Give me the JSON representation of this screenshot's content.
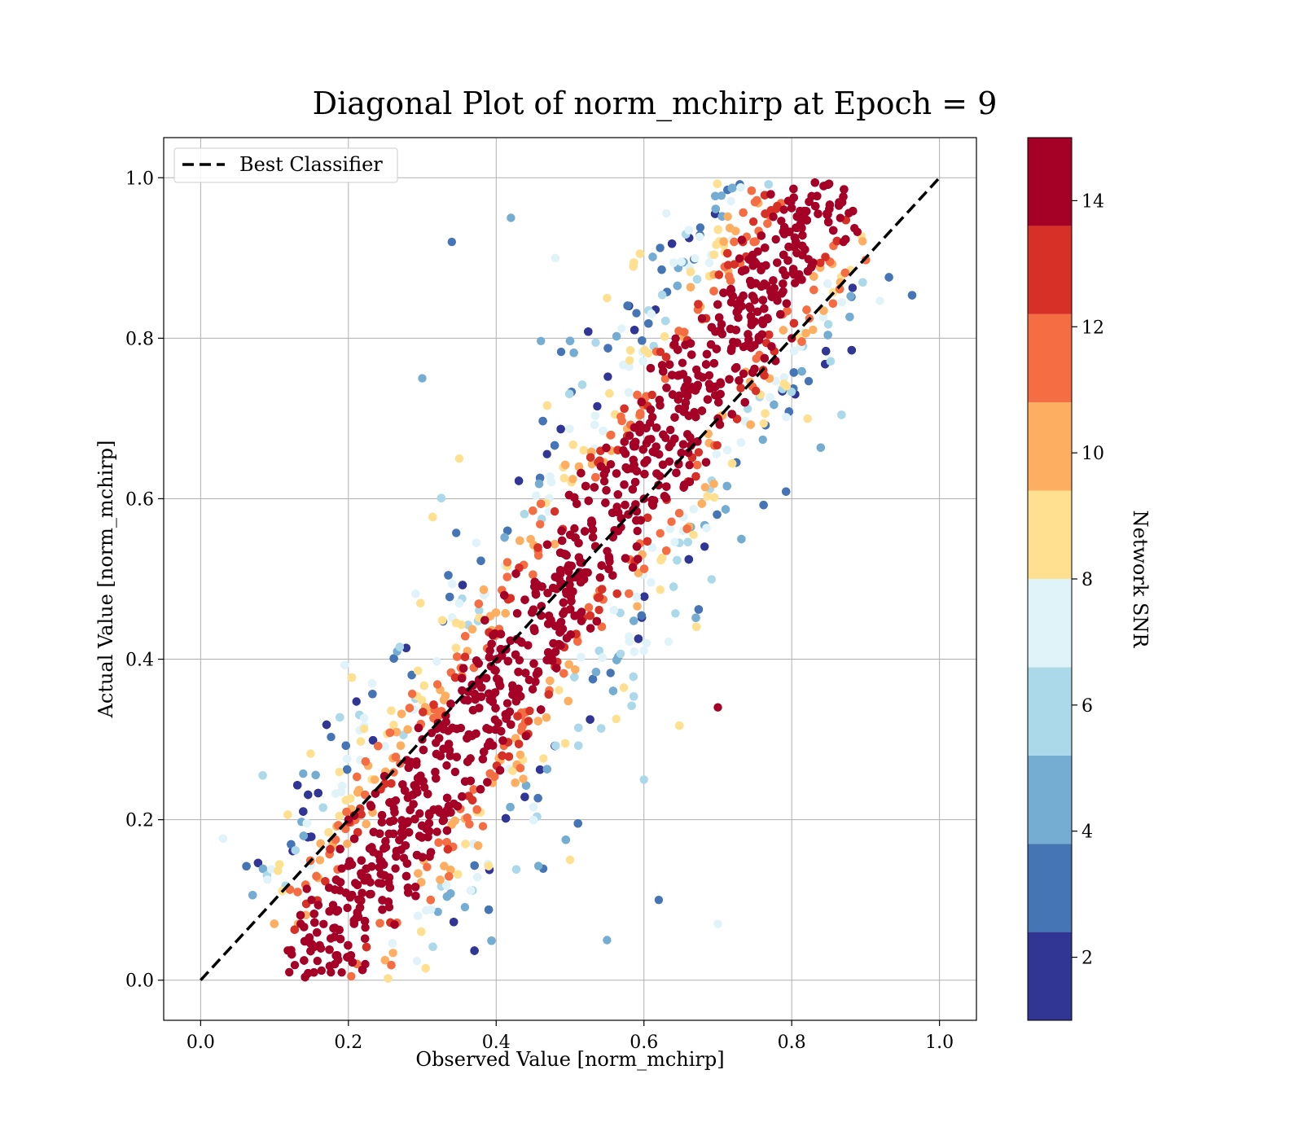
{
  "chart_data": {
    "type": "scatter",
    "title": "Diagonal Plot of norm_mchirp at Epoch = 9",
    "xlabel": "Observed Value [norm_mchirp]",
    "ylabel": "Actual Value [norm_mchirp]",
    "xlim": [
      -0.05,
      1.05
    ],
    "ylim": [
      -0.05,
      1.05
    ],
    "xticks": [
      0.0,
      0.2,
      0.4,
      0.6,
      0.8,
      1.0
    ],
    "yticks": [
      0.0,
      0.2,
      0.4,
      0.6,
      0.8,
      1.0
    ],
    "xtick_labels": [
      "0.0",
      "0.2",
      "0.4",
      "0.6",
      "0.8",
      "1.0"
    ],
    "ytick_labels": [
      "0.0",
      "0.2",
      "0.4",
      "0.6",
      "0.8",
      "1.0"
    ],
    "grid": true,
    "legend": {
      "placement": "upper-left",
      "entries": [
        "Best Classifier"
      ]
    },
    "reference_line": {
      "name": "Best Classifier",
      "x": [
        0.0,
        1.0
      ],
      "y": [
        0.0,
        1.0
      ],
      "style": "dashed",
      "color": "#000000"
    },
    "colorbar": {
      "label": "Network SNR",
      "range": [
        1,
        15
      ],
      "ticks": [
        2,
        4,
        6,
        8,
        10,
        12,
        14
      ],
      "tick_labels": [
        "2",
        "4",
        "6",
        "8",
        "10",
        "12",
        "14"
      ],
      "colors": [
        "#313695",
        "#4575b4",
        "#74add1",
        "#abd9e9",
        "#e0f3f8",
        "#fee090",
        "#fdae61",
        "#f46d43",
        "#d73027",
        "#a50026"
      ]
    },
    "points_sample": [
      {
        "x": 0.12,
        "y": 0.01,
        "snr": 15
      },
      {
        "x": 0.15,
        "y": 0.1,
        "snr": 15
      },
      {
        "x": 0.2,
        "y": 0.2,
        "snr": 15
      },
      {
        "x": 0.3,
        "y": 0.3,
        "snr": 15
      },
      {
        "x": 0.4,
        "y": 0.4,
        "snr": 15
      },
      {
        "x": 0.5,
        "y": 0.5,
        "snr": 15
      },
      {
        "x": 0.6,
        "y": 0.6,
        "snr": 15
      },
      {
        "x": 0.7,
        "y": 0.7,
        "snr": 15
      },
      {
        "x": 0.8,
        "y": 0.8,
        "snr": 15
      },
      {
        "x": 0.87,
        "y": 0.92,
        "snr": 15
      },
      {
        "x": 0.34,
        "y": 0.92,
        "snr": 3
      },
      {
        "x": 0.42,
        "y": 0.95,
        "snr": 4
      },
      {
        "x": 0.48,
        "y": 0.9,
        "snr": 7
      },
      {
        "x": 0.55,
        "y": 0.85,
        "snr": 9
      },
      {
        "x": 0.3,
        "y": 0.75,
        "snr": 5
      },
      {
        "x": 0.35,
        "y": 0.65,
        "snr": 8
      },
      {
        "x": 0.62,
        "y": 0.1,
        "snr": 3
      },
      {
        "x": 0.55,
        "y": 0.05,
        "snr": 5
      },
      {
        "x": 0.5,
        "y": 0.15,
        "snr": 8
      },
      {
        "x": 0.6,
        "y": 0.25,
        "snr": 6
      },
      {
        "x": 0.7,
        "y": 0.34,
        "snr": 14
      },
      {
        "x": 0.7,
        "y": 0.07,
        "snr": 7
      }
    ]
  }
}
